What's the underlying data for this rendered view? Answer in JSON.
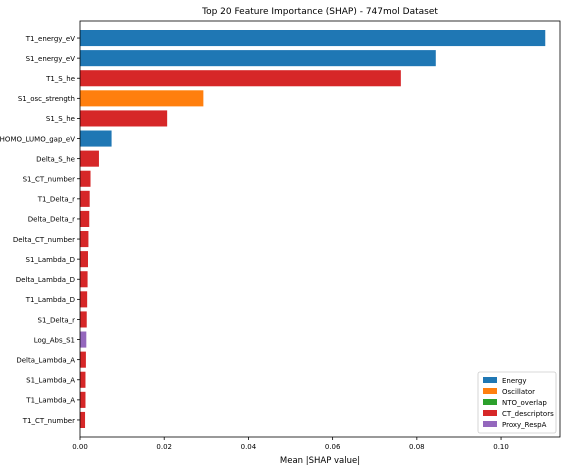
{
  "chart_data": {
    "type": "bar",
    "orientation": "horizontal",
    "title": "Top 20 Feature Importance (SHAP) - 747mol Dataset",
    "xlabel": "Mean |SHAP value|",
    "ylabel": "",
    "xlim": [
      0,
      0.114
    ],
    "x_ticks": [
      "0.00",
      "0.02",
      "0.04",
      "0.06",
      "0.08",
      "0.10"
    ],
    "x_tick_values": [
      0,
      0.02,
      0.04,
      0.06,
      0.08,
      0.1
    ],
    "grid": false,
    "legend_position": "bottom-right",
    "legend": [
      {
        "name": "Energy",
        "color": "#1f77b4"
      },
      {
        "name": "Oscillator",
        "color": "#ff7f0e"
      },
      {
        "name": "NTO_overlap",
        "color": "#2ca02c"
      },
      {
        "name": "CT_descriptors",
        "color": "#d62728"
      },
      {
        "name": "Proxy_RespA",
        "color": "#9467bd"
      }
    ],
    "bars": [
      {
        "label": "T1_energy_eV",
        "value": 0.1105,
        "group": "Energy"
      },
      {
        "label": "S1_energy_eV",
        "value": 0.0845,
        "group": "Energy"
      },
      {
        "label": "T1_S_he",
        "value": 0.0762,
        "group": "CT_descriptors"
      },
      {
        "label": "S1_osc_strength",
        "value": 0.0293,
        "group": "Oscillator"
      },
      {
        "label": "S1_S_he",
        "value": 0.0207,
        "group": "CT_descriptors"
      },
      {
        "label": "HOMO_LUMO_gap_eV",
        "value": 0.0075,
        "group": "Energy"
      },
      {
        "label": "Delta_S_he",
        "value": 0.0045,
        "group": "CT_descriptors"
      },
      {
        "label": "S1_CT_number",
        "value": 0.0025,
        "group": "CT_descriptors"
      },
      {
        "label": "T1_Delta_r",
        "value": 0.0023,
        "group": "CT_descriptors"
      },
      {
        "label": "Delta_Delta_r",
        "value": 0.0022,
        "group": "CT_descriptors"
      },
      {
        "label": "Delta_CT_number",
        "value": 0.002,
        "group": "CT_descriptors"
      },
      {
        "label": "S1_Lambda_D",
        "value": 0.0019,
        "group": "CT_descriptors"
      },
      {
        "label": "Delta_Lambda_D",
        "value": 0.0018,
        "group": "CT_descriptors"
      },
      {
        "label": "T1_Lambda_D",
        "value": 0.0017,
        "group": "CT_descriptors"
      },
      {
        "label": "S1_Delta_r",
        "value": 0.0016,
        "group": "CT_descriptors"
      },
      {
        "label": "Log_Abs_S1",
        "value": 0.0015,
        "group": "Proxy_RespA"
      },
      {
        "label": "Delta_Lambda_A",
        "value": 0.0014,
        "group": "CT_descriptors"
      },
      {
        "label": "S1_Lambda_A",
        "value": 0.0013,
        "group": "CT_descriptors"
      },
      {
        "label": "T1_Lambda_A",
        "value": 0.0013,
        "group": "CT_descriptors"
      },
      {
        "label": "T1_CT_number",
        "value": 0.0012,
        "group": "CT_descriptors"
      }
    ]
  }
}
